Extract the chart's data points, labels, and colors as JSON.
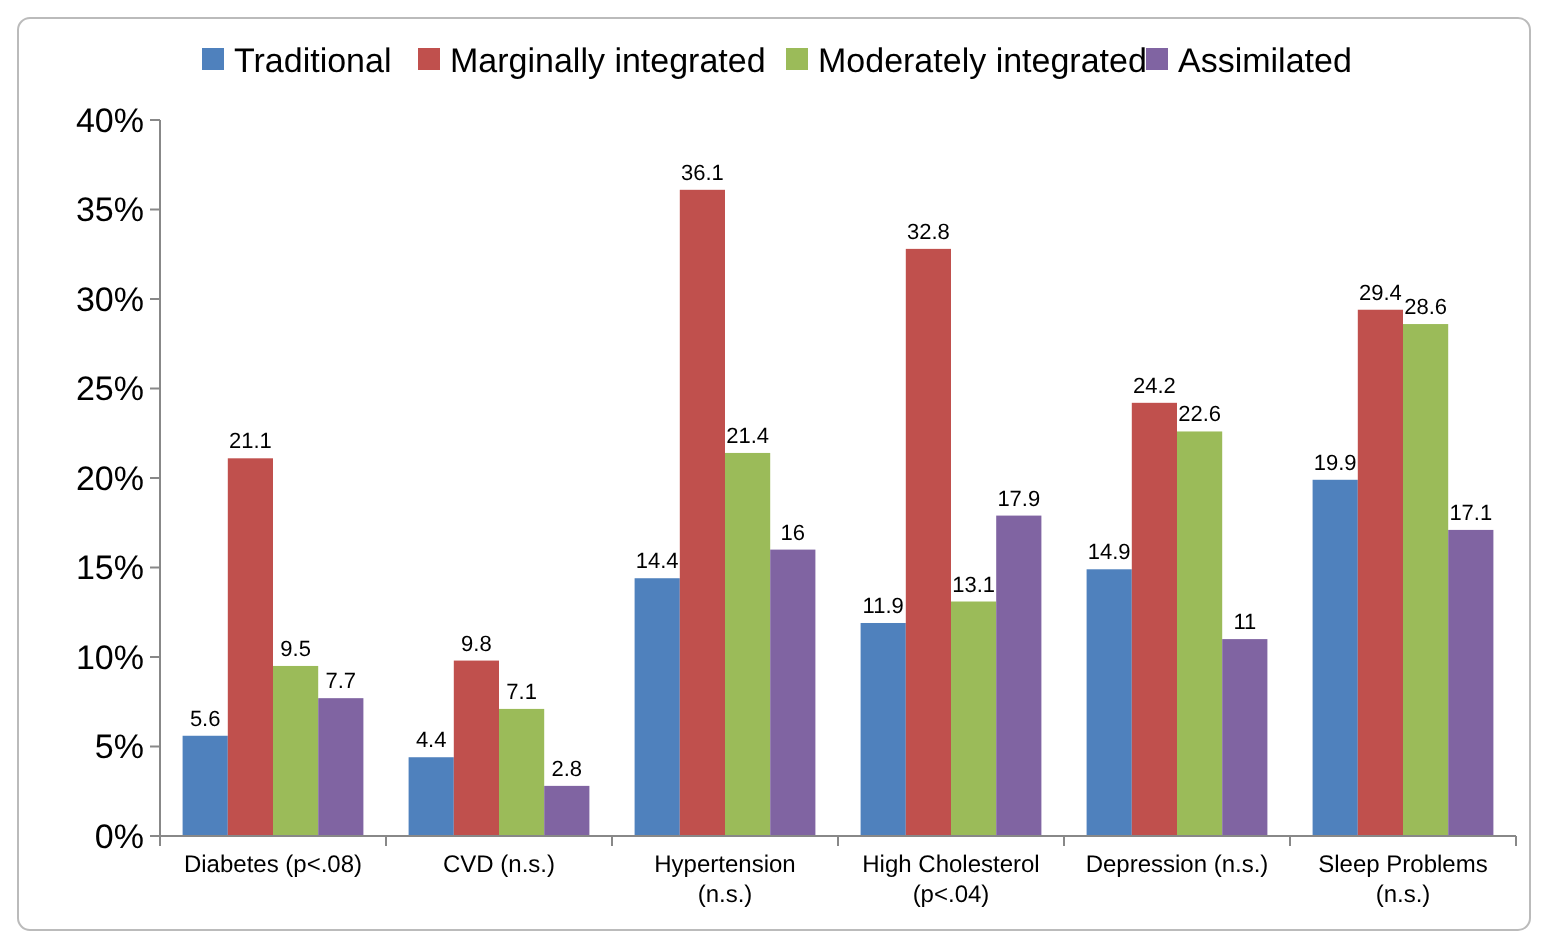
{
  "chart_data": {
    "type": "bar",
    "categories": [
      "Diabetes (p<.08)",
      "CVD (n.s.)",
      "Hypertension\n(n.s.)",
      "High Cholesterol\n(p<.04)",
      "Depression (n.s.)",
      "Sleep Problems\n(n.s.)"
    ],
    "series": [
      {
        "name": "Traditional",
        "color": "#4f81bd",
        "values": [
          5.6,
          4.4,
          14.4,
          11.9,
          14.9,
          19.9
        ]
      },
      {
        "name": "Marginally integrated",
        "color": "#c0504d",
        "values": [
          21.1,
          9.8,
          36.1,
          32.8,
          24.2,
          29.4
        ]
      },
      {
        "name": "Moderately integrated",
        "color": "#9bbb59",
        "values": [
          9.5,
          7.1,
          21.4,
          13.1,
          22.6,
          28.6
        ]
      },
      {
        "name": "Assimilated",
        "color": "#8064a2",
        "values": [
          7.7,
          2.8,
          16,
          17.9,
          11,
          17.1
        ]
      }
    ],
    "ylim": [
      0,
      40
    ],
    "yticks": [
      {
        "value": 0,
        "label": "0%"
      },
      {
        "value": 5,
        "label": "5%"
      },
      {
        "value": 10,
        "label": "10%"
      },
      {
        "value": 15,
        "label": "15%"
      },
      {
        "value": 20,
        "label": "20%"
      },
      {
        "value": 25,
        "label": "25%"
      },
      {
        "value": 30,
        "label": "30%"
      },
      {
        "value": 35,
        "label": "35%"
      },
      {
        "value": 40,
        "label": "40%"
      }
    ],
    "data_labels": true,
    "legend": "top",
    "grid": false
  }
}
